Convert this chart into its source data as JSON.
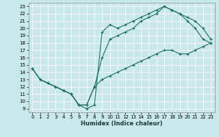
{
  "xlabel": "Humidex (Indice chaleur)",
  "background_color": "#c8e8ec",
  "grid_color": "#b0d8dc",
  "line_color": "#1a6b60",
  "xlim": [
    -0.5,
    23.5
  ],
  "ylim": [
    8.5,
    23.5
  ],
  "xticks": [
    0,
    1,
    2,
    3,
    4,
    5,
    6,
    7,
    8,
    9,
    10,
    11,
    12,
    13,
    14,
    15,
    16,
    17,
    18,
    19,
    20,
    21,
    22,
    23
  ],
  "yticks": [
    9,
    10,
    11,
    12,
    13,
    14,
    15,
    16,
    17,
    18,
    19,
    20,
    21,
    22,
    23
  ],
  "line1": {
    "x": [
      0,
      1,
      2,
      3,
      4,
      5,
      6,
      7,
      8,
      9,
      10,
      11,
      12,
      13,
      14,
      15,
      16,
      17,
      18,
      19,
      20,
      21,
      22,
      23
    ],
    "y": [
      14.5,
      13,
      12.5,
      12,
      11.5,
      11,
      9.5,
      9,
      9.5,
      19.5,
      20.5,
      20,
      20.5,
      21,
      21.5,
      22,
      22.5,
      23,
      22.5,
      22,
      21,
      20,
      18.5,
      18
    ]
  },
  "line2": {
    "x": [
      0,
      1,
      2,
      3,
      4,
      5,
      6,
      7,
      8,
      9,
      10,
      11,
      12,
      13,
      14,
      15,
      16,
      17,
      18,
      19,
      20,
      21,
      22,
      23
    ],
    "y": [
      14.5,
      13,
      12.5,
      12,
      11.5,
      11,
      9.5,
      9.5,
      12,
      16,
      18.5,
      19,
      19.5,
      20,
      21,
      21.5,
      22,
      23,
      22.5,
      22,
      21.5,
      21,
      20,
      18.5
    ]
  },
  "line3": {
    "x": [
      0,
      1,
      2,
      3,
      4,
      5,
      6,
      7,
      8,
      9,
      10,
      11,
      12,
      13,
      14,
      15,
      16,
      17,
      18,
      19,
      20,
      21,
      22,
      23
    ],
    "y": [
      14.5,
      13,
      12.5,
      12,
      11.5,
      11,
      9.5,
      9.5,
      12,
      13,
      13.5,
      14,
      14.5,
      15,
      15.5,
      16,
      16.5,
      17,
      17,
      16.5,
      16.5,
      17,
      17.5,
      18
    ]
  }
}
